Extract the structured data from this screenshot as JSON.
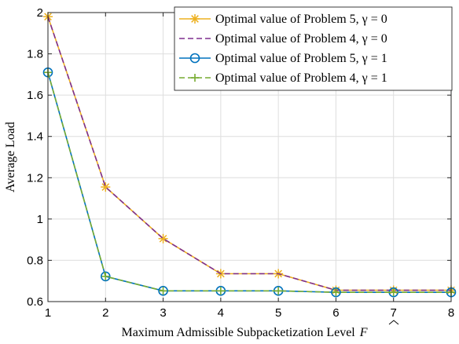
{
  "chart_data": {
    "type": "line",
    "xlabel": "Maximum Admissible Subpacketization Level",
    "xlabel_symbol": "F",
    "ylabel": "Average Load",
    "x": [
      1,
      2,
      3,
      4,
      5,
      6,
      7,
      8
    ],
    "xlim": [
      1,
      8
    ],
    "ylim": [
      0.6,
      2
    ],
    "xticks": [
      "1",
      "2",
      "3",
      "4",
      "5",
      "6",
      "7",
      "8"
    ],
    "yticks": [
      "0.6",
      "0.8",
      "1",
      "1.2",
      "1.4",
      "1.6",
      "1.8",
      "2"
    ],
    "grid": true,
    "legend_position": "top-right",
    "series": [
      {
        "name": "Optimal value of Problem 5, γ = 0",
        "color": "#EDB120",
        "marker": "asterisk",
        "line": "solid",
        "values": [
          1.98,
          1.155,
          0.905,
          0.735,
          0.735,
          0.655,
          0.655,
          0.655
        ]
      },
      {
        "name": "Optimal value of Problem 4, γ = 0",
        "color": "#7E2F8E",
        "marker": "none",
        "line": "dashed",
        "values": [
          1.98,
          1.155,
          0.905,
          0.735,
          0.735,
          0.655,
          0.655,
          0.655
        ]
      },
      {
        "name": "Optimal value of Problem 5, γ = 1",
        "color": "#0072BD",
        "marker": "circle",
        "line": "solid",
        "values": [
          1.71,
          0.722,
          0.652,
          0.652,
          0.652,
          0.645,
          0.645,
          0.645
        ]
      },
      {
        "name": "Optimal value of Problem 4, γ = 1",
        "color": "#77AC30",
        "marker": "plus",
        "line": "dashed",
        "values": [
          1.71,
          0.722,
          0.652,
          0.652,
          0.652,
          0.645,
          0.645,
          0.645
        ]
      }
    ]
  }
}
